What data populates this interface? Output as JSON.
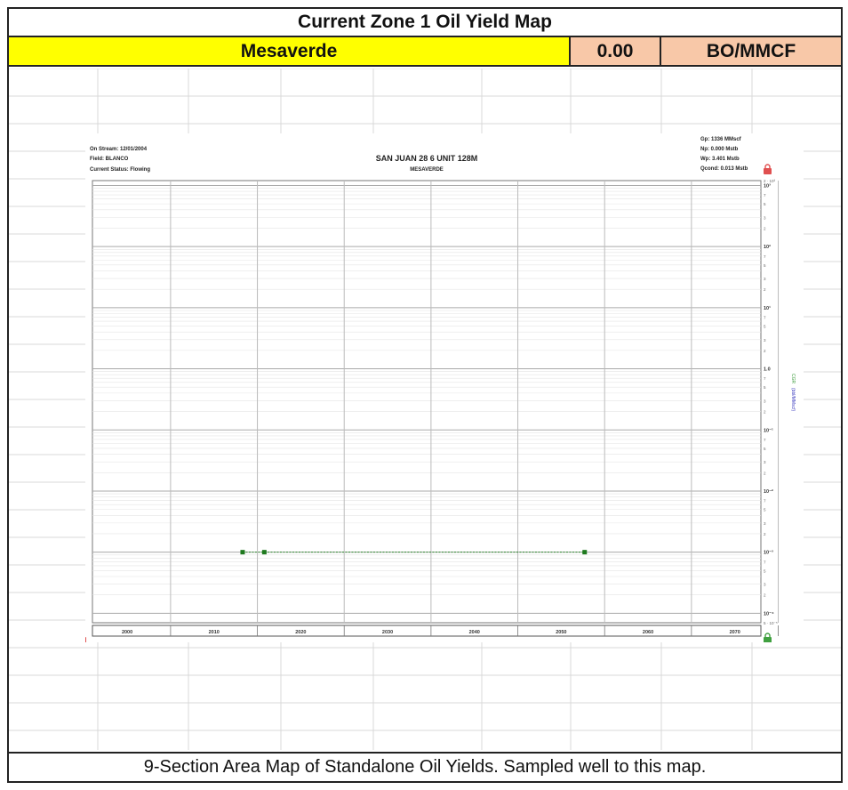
{
  "sheet": {
    "title": "Current Zone 1 Oil Yield Map",
    "formation": "Mesaverde",
    "yield_value": "0.00",
    "yield_unit": "BO/MMCF",
    "footer": "9-Section Area Map of Standalone Oil Yields. Sampled well to this map."
  },
  "well_info": {
    "on_stream": "On Stream: 12/01/2004",
    "field": "Field: BLANCO",
    "status": "Current Status: Flowing",
    "gp": "Gp: 1336 MMscf",
    "np": "Np: 0.000 Mstb",
    "wp": "Wp: 3.401 Mstb",
    "qcond": "Qcond: 0.013 Mstb"
  },
  "colors": {
    "series": "#2e8b2e",
    "right_axis_label": "#4040c0",
    "lock_left": "#e05050",
    "lock_right": "#40a040"
  },
  "chart_data": {
    "type": "line",
    "title": "SAN JUAN 28 6 UNIT 128M",
    "subtitle": "MESAVERDE",
    "x_ticks": [
      "2000",
      "2010",
      "2020",
      "2030",
      "2040",
      "2050",
      "2060",
      "2070"
    ],
    "xlim": [
      1996,
      2073
    ],
    "yscale": "log",
    "ylim": [
      7e-05,
      1200
    ],
    "y_major_ticks": [
      {
        "value": 1000,
        "label": "10³"
      },
      {
        "value": 100,
        "label": "10²"
      },
      {
        "value": 10,
        "label": "10¹"
      },
      {
        "value": 1,
        "label": "1.0"
      },
      {
        "value": 0.1,
        "label": "10⁻¹"
      },
      {
        "value": 0.01,
        "label": "10⁻²"
      },
      {
        "value": 0.001,
        "label": "10⁻³"
      },
      {
        "value": 0.0001,
        "label": "10⁻⁴"
      }
    ],
    "y_minor_labels": [
      "7",
      "5",
      "3",
      "2"
    ],
    "y_top_label": "2 · 10³",
    "y_bottom_label": "5 · 10⁻⁵",
    "right_axis_labels": [
      "CGR",
      "(bbl/MMscf)"
    ],
    "grid": true,
    "series": [
      {
        "x": [
          2013.3,
          2015.8,
          2052.7
        ],
        "y": [
          0.001,
          0.001,
          0.001
        ]
      }
    ]
  }
}
